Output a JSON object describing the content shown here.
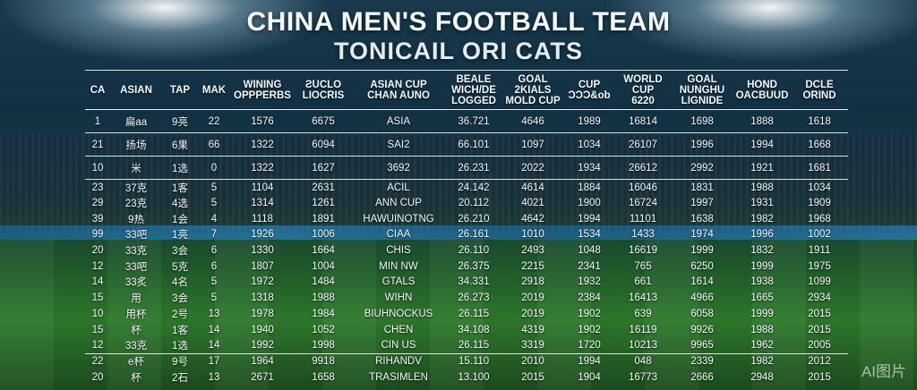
{
  "title": "CHINA MEN'S FOOTBALL TEAM",
  "subtitle": "TONICAIL ORI CATS",
  "watermark": "AI图片",
  "columns": [
    "CA",
    "ASIAN",
    "TAP",
    "MAK",
    "WINING\nOPPPERBS",
    "ƧUCLO\nLIOCRIS",
    "ASIAN CUP\nCHAN AUNO",
    "BEALE\nWICH/DE\nLOGGED",
    "GOAL\n2KIALS\nMOLD CUP",
    "CUP\nƆƆƆ&ob",
    "WORLD\nCUP\n6220",
    "GOAL\nNUNGHU\nLIGNIDE",
    "HOND\nOACBUUD",
    "DCLE\nORIND"
  ],
  "rows": [
    [
      "1",
      "扁aa",
      "9亮",
      "22",
      "1576",
      "6675",
      "ASIA",
      "36.721",
      "4646",
      "1989",
      "16814",
      "1698",
      "1888",
      "1618"
    ],
    [
      "21",
      "扬场",
      "6果",
      "66",
      "1322",
      "6094",
      "SAI2",
      "66.101",
      "1097",
      "1034",
      "26107",
      "1996",
      "1994",
      "1668"
    ],
    [
      "10",
      "米",
      "1选",
      "0",
      "1322",
      "1627",
      "3692",
      "26.231",
      "2022",
      "1934",
      "26612",
      "2992",
      "1921",
      "1681"
    ],
    [
      "23",
      "37克",
      "1客",
      "5",
      "1104",
      "2631",
      "ACIL",
      "24.142",
      "4614",
      "1884",
      "16046",
      "1831",
      "1988",
      "1034"
    ],
    [
      "29",
      "23克",
      "4选",
      "5",
      "1314",
      "1261",
      "ANN CUP",
      "20.112",
      "4021",
      "1900",
      "16724",
      "1997",
      "1931",
      "1909"
    ],
    [
      "39",
      "9热",
      "1会",
      "4",
      "1118",
      "1891",
      "HAWUINOTNG",
      "26.210",
      "4642",
      "1994",
      "11101",
      "1638",
      "1982",
      "1968"
    ],
    [
      "99",
      "33吧",
      "1亮",
      "7",
      "1926",
      "1006",
      "CIAA",
      "26.161",
      "1010",
      "1534",
      "1433",
      "1974",
      "1996",
      "1002"
    ],
    [
      "20",
      "33克",
      "3会",
      "6",
      "1330",
      "1664",
      "CHIS",
      "26.110",
      "2493",
      "1048",
      "16619",
      "1999",
      "1832",
      "1911"
    ],
    [
      "12",
      "33吧",
      "5克",
      "6",
      "1807",
      "1004",
      "MIN NW",
      "26.375",
      "2215",
      "2341",
      "765",
      "6250",
      "1999",
      "1975"
    ],
    [
      "14",
      "33炙",
      "4名",
      "5",
      "1972",
      "1484",
      "GTALS",
      "34.331",
      "2918",
      "1932",
      "661",
      "1614",
      "1938",
      "1099"
    ],
    [
      "15",
      "用",
      "3会",
      "5",
      "1318",
      "1988",
      "WIHN",
      "26.273",
      "2019",
      "2384",
      "16413",
      "4966",
      "1665",
      "2934"
    ],
    [
      "10",
      "用杯",
      "2号",
      "13",
      "1978",
      "1984",
      "BIUHNOCKUS",
      "26.115",
      "2019",
      "1902",
      "639",
      "6058",
      "1999",
      "2015"
    ],
    [
      "15",
      "杯",
      "1客",
      "14",
      "1940",
      "1052",
      "CHEN",
      "34.108",
      "4319",
      "1902",
      "16119",
      "9926",
      "1988",
      "2015"
    ],
    [
      "12",
      "33克",
      "1选",
      "14",
      "1992",
      "1998",
      "CIN US",
      "26.115",
      "3319",
      "1720",
      "10213",
      "9965",
      "1962",
      "2005"
    ],
    [
      "22",
      "e杯",
      "9号",
      "17",
      "1964",
      "9918",
      "RIHANDV",
      "15.110",
      "2010",
      "1994",
      "048",
      "2339",
      "1982",
      "2012"
    ],
    [
      "20",
      "杯",
      "2石",
      "13",
      "2671",
      "1658",
      "TRASIMLEN",
      "13.100",
      "2015",
      "1904",
      "16773",
      "2666",
      "2948",
      "2015"
    ]
  ]
}
